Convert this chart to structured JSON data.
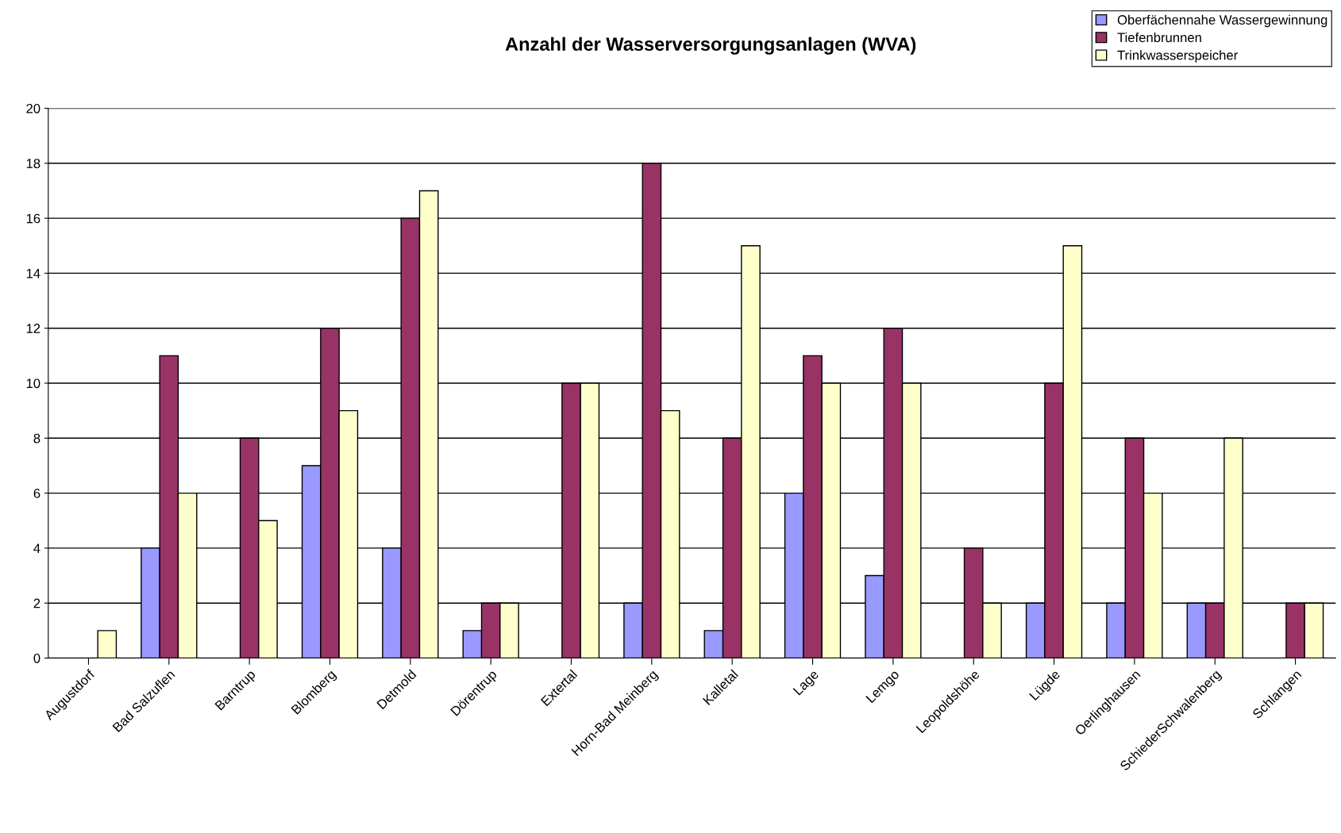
{
  "chart_data": {
    "type": "bar",
    "title": "Anzahl der Wasserversorgungsanlagen (WVA)",
    "categories": [
      "Augustdorf",
      "Bad Salzuflen",
      "Barntrup",
      "Blomberg",
      "Detmold",
      "Dörentrup",
      "Extertal",
      "Horn-Bad Meinberg",
      "Kalletal",
      "Lage",
      "Lemgo",
      "Leopoldshöhe",
      "Lügde",
      "Oerlinghausen",
      "SchiederSchwalenberg",
      "Schlangen"
    ],
    "series": [
      {
        "name": "Oberfächennahe Wassergewinnung",
        "color": "#9999ff",
        "values": [
          0,
          4,
          0,
          7,
          4,
          1,
          0,
          2,
          1,
          6,
          3,
          0,
          2,
          2,
          2,
          0
        ]
      },
      {
        "name": "Tiefenbrunnen",
        "color": "#993366",
        "values": [
          0,
          11,
          8,
          12,
          16,
          2,
          10,
          18,
          8,
          11,
          12,
          4,
          10,
          8,
          2,
          2
        ]
      },
      {
        "name": "Trinkwasserspeicher",
        "color": "#ffffcc",
        "values": [
          1,
          6,
          5,
          9,
          17,
          2,
          10,
          9,
          15,
          10,
          10,
          2,
          15,
          6,
          8,
          2
        ]
      }
    ],
    "ylim": [
      0,
      20
    ],
    "yticks": [
      0,
      2,
      4,
      6,
      8,
      10,
      12,
      14,
      16,
      18,
      20
    ],
    "grid": "y",
    "legend": "top right"
  }
}
